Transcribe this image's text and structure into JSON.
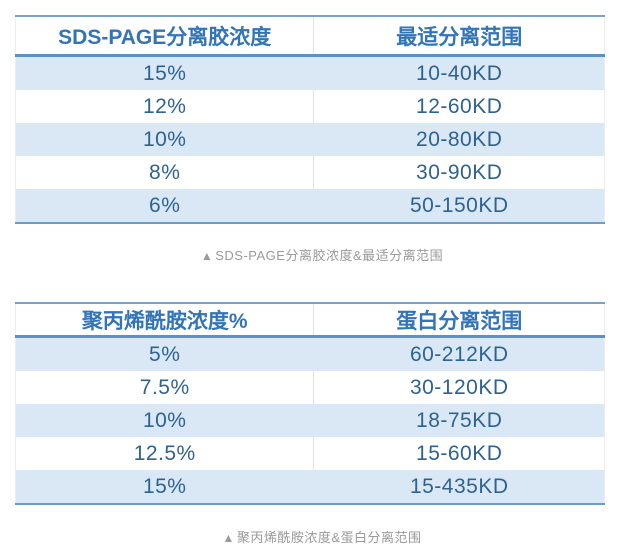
{
  "colors": {
    "header_text": "#3274b8",
    "cell_text": "#2e6391",
    "row_alt_bg": "#d9e8f4",
    "header_underline": "#5e91c3",
    "table_top_border": "#7ca3c6",
    "table_bottom_border": "#6f9cc4",
    "caption_text": "#9a9a9a"
  },
  "table1": {
    "headers": [
      "SDS-PAGE分离胶浓度",
      "最适分离范围"
    ],
    "rows": [
      {
        "concentration": "15%",
        "range": "10-40KD"
      },
      {
        "concentration": "12%",
        "range": "12-60KD"
      },
      {
        "concentration": "10%",
        "range": "20-80KD"
      },
      {
        "concentration": "8%",
        "range": "30-90KD"
      },
      {
        "concentration": "6%",
        "range": "50-150KD"
      }
    ],
    "caption_marker": "▲",
    "caption_text": "SDS-PAGE分离胶浓度&最适分离范围"
  },
  "table2": {
    "headers": [
      "聚丙烯酰胺浓度%",
      "蛋白分离范围"
    ],
    "rows": [
      {
        "concentration": "5%",
        "range": "60-212KD"
      },
      {
        "concentration": "7.5%",
        "range": "30-120KD"
      },
      {
        "concentration": "10%",
        "range": "18-75KD"
      },
      {
        "concentration": "12.5%",
        "range": "15-60KD"
      },
      {
        "concentration": "15%",
        "range": "15-435KD"
      }
    ],
    "caption_marker": "▲",
    "caption_text": "聚丙烯酰胺浓度&蛋白分离范围"
  }
}
